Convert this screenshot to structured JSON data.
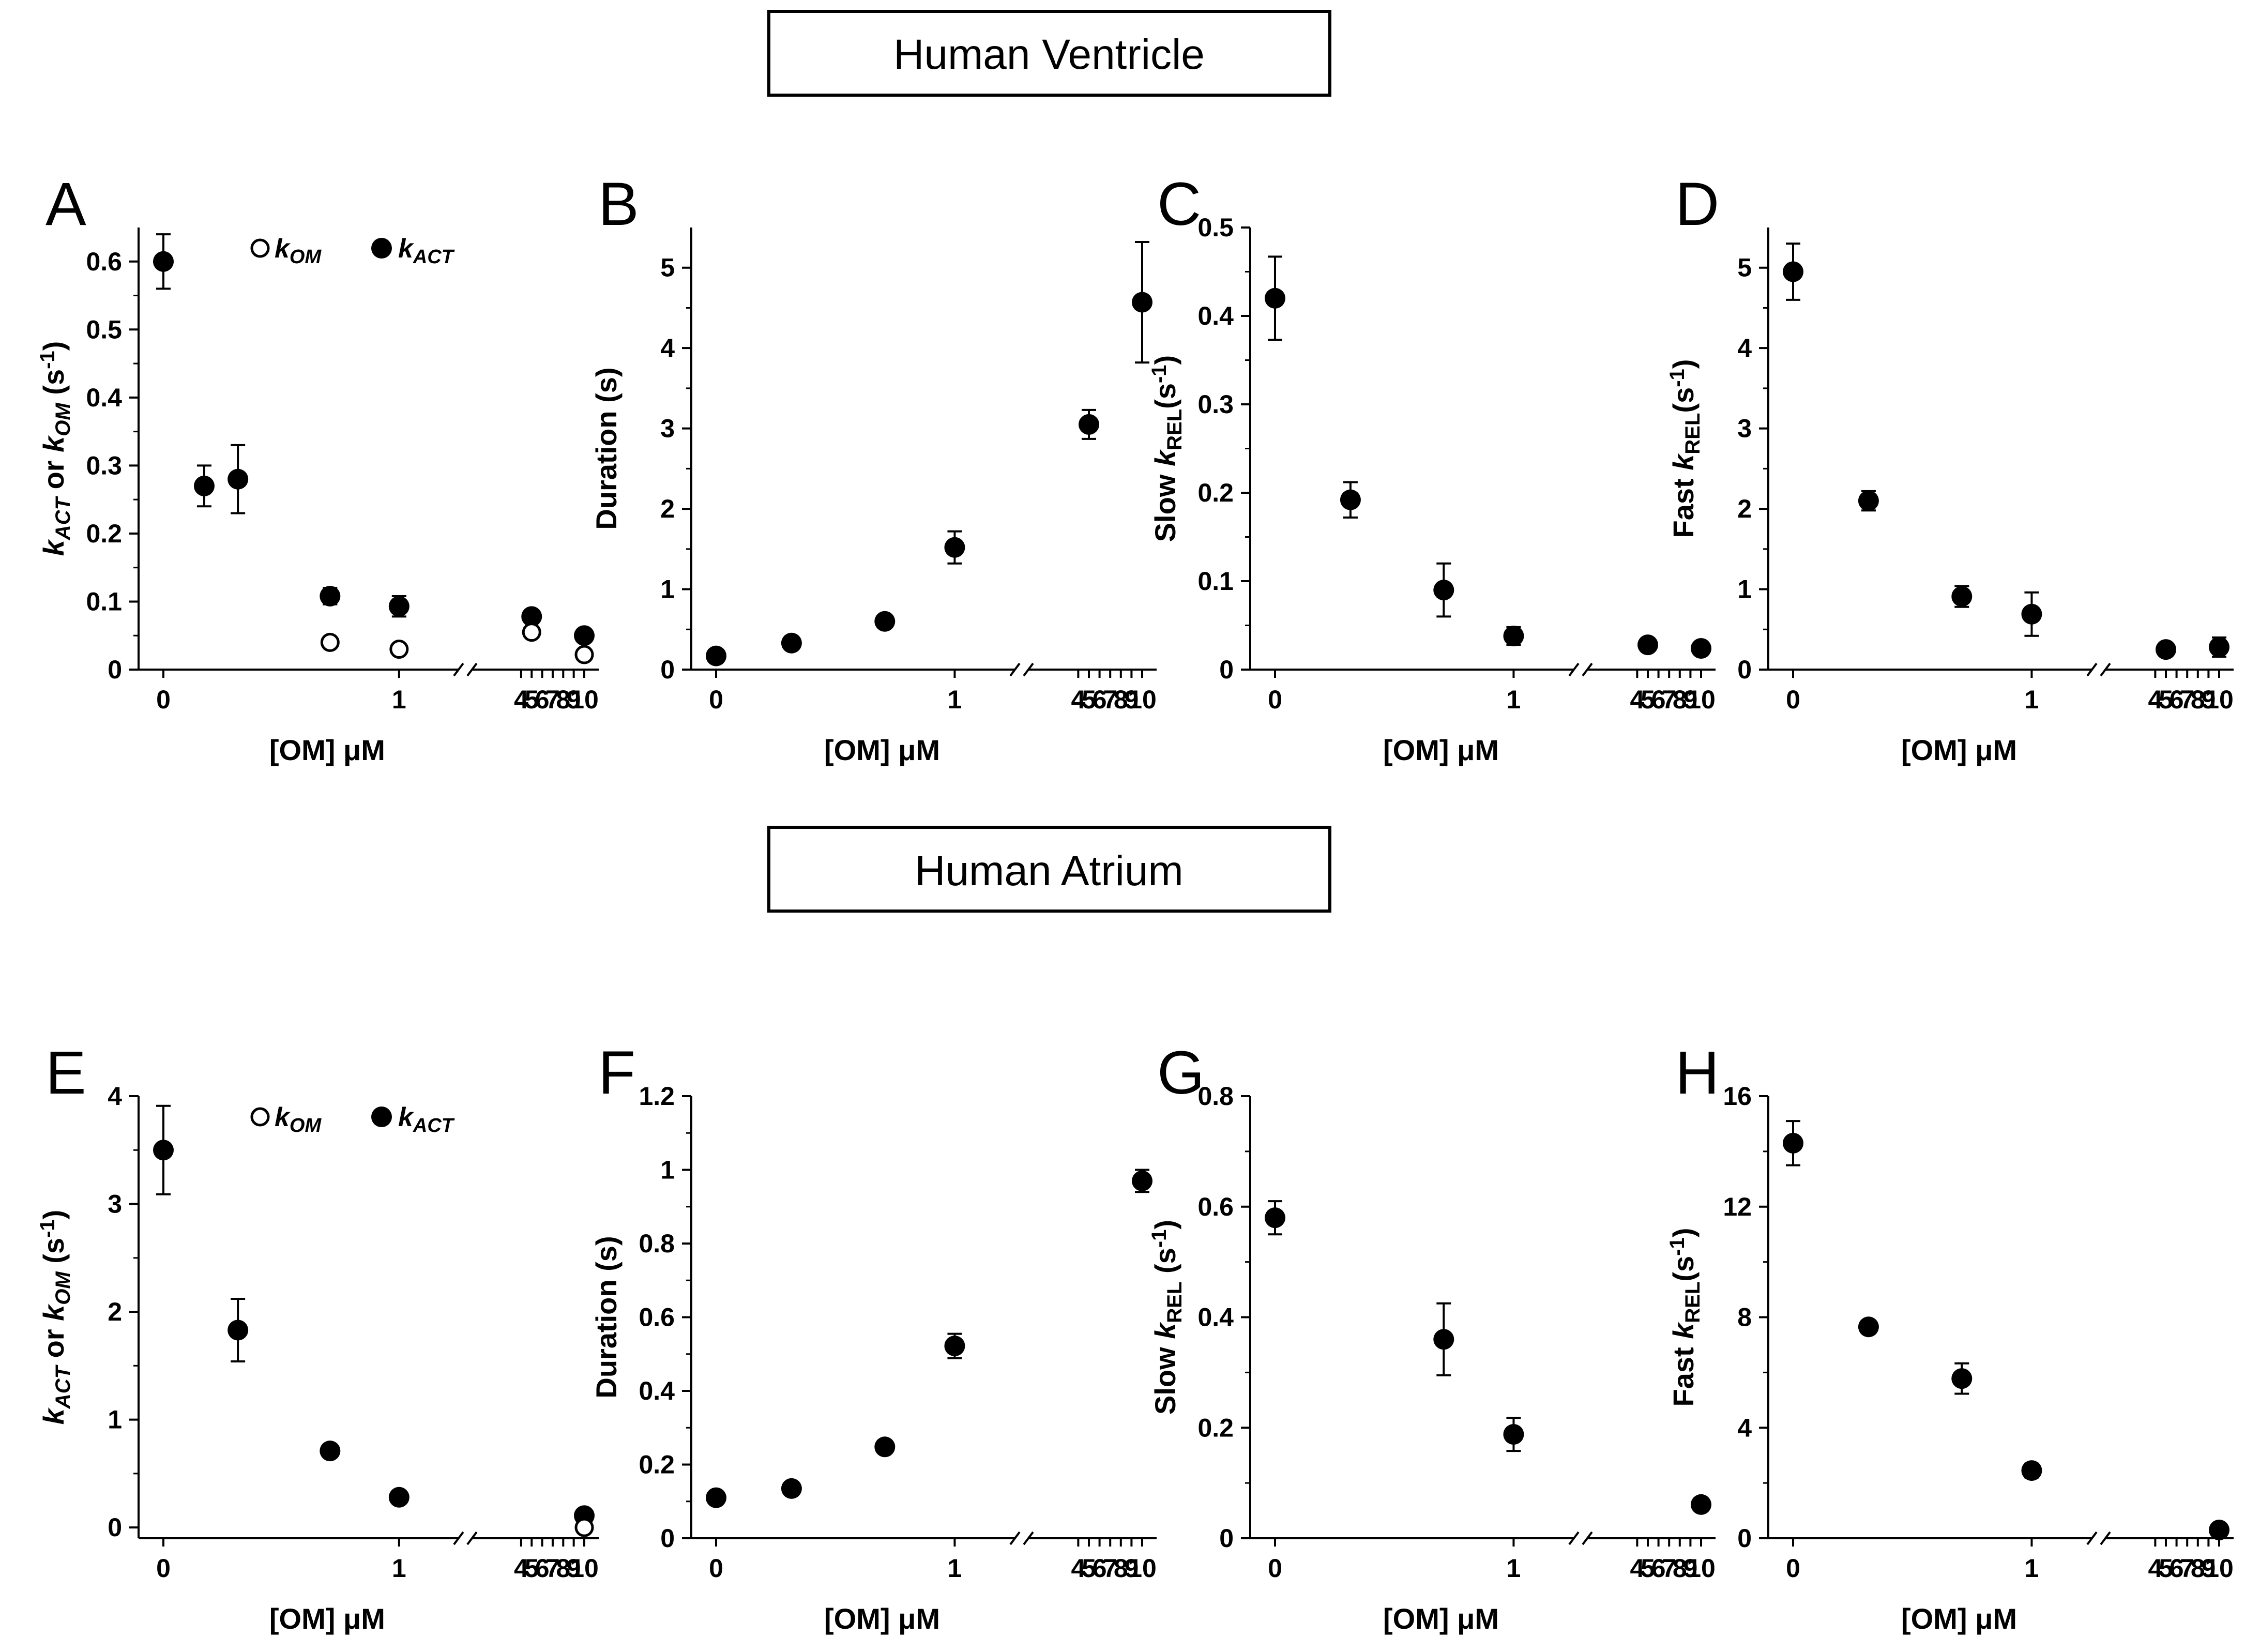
{
  "sections": [
    {
      "title": "Human Ventricle"
    },
    {
      "title": "Human Atrium"
    }
  ],
  "axis_common": {
    "xlabel": "[OM] μM",
    "x_ticks": [
      {
        "v": 0,
        "label": "0"
      },
      {
        "v": 1,
        "label": "1"
      },
      {
        "v": 4,
        "label": "4"
      },
      {
        "v": 5,
        "label": "5"
      },
      {
        "v": 6,
        "label": "6"
      },
      {
        "v": 7,
        "label": "7"
      },
      {
        "v": 8,
        "label": "8"
      },
      {
        "v": 9,
        "label": "9"
      },
      {
        "v": 10,
        "label": "10"
      }
    ]
  },
  "legend": {
    "open_label": "k",
    "open_sub": "OM",
    "filled_label": "k",
    "filled_sub": "ACT"
  },
  "chart_data": [
    {
      "panel": "A",
      "type": "scatter",
      "section": 0,
      "legend": true,
      "ylabel": [
        {
          "t": "k",
          "it": true
        },
        {
          "t": "ACT",
          "sub": true,
          "it": true
        },
        {
          "t": "  or "
        },
        {
          "t": "k",
          "it": true
        },
        {
          "t": "OM",
          "sub": true,
          "it": true
        },
        {
          "t": " (s"
        },
        {
          "t": "-1",
          "sup": true
        },
        {
          "t": ")"
        }
      ],
      "ylim": [
        0,
        0.65
      ],
      "yticks": [
        0,
        0.1,
        0.2,
        0.3,
        0.4,
        0.5,
        0.6
      ],
      "ytick_labels": [
        "0",
        "0.1",
        "0.2",
        "0.3",
        "0.4",
        "0.5",
        "0.6"
      ],
      "series": [
        {
          "name": "kACT",
          "marker": "filled",
          "x": [
            0,
            0.03,
            0.1,
            0.5,
            1,
            5,
            10
          ],
          "y": [
            0.6,
            0.27,
            0.28,
            0.108,
            0.093,
            0.078,
            0.05
          ],
          "err": [
            0.04,
            0.03,
            0.05,
            0.012,
            0.015,
            0.008,
            0.006
          ]
        },
        {
          "name": "kOM",
          "marker": "open",
          "x": [
            0.5,
            1,
            5,
            10
          ],
          "y": [
            0.04,
            0.03,
            0.055,
            0.022
          ],
          "err": [
            0,
            0,
            0,
            0
          ]
        }
      ]
    },
    {
      "panel": "B",
      "type": "scatter",
      "section": 0,
      "legend": false,
      "ylabel": [
        {
          "t": "Duration (s)"
        }
      ],
      "ylim": [
        0,
        5.5
      ],
      "yticks": [
        0,
        1,
        2,
        3,
        4,
        5
      ],
      "ytick_labels": [
        "0",
        "1",
        "2",
        "3",
        "4",
        "5"
      ],
      "series": [
        {
          "name": "Duration",
          "marker": "filled",
          "x": [
            0,
            0.1,
            0.5,
            1,
            5,
            10
          ],
          "y": [
            0.17,
            0.33,
            0.6,
            1.52,
            3.05,
            4.57
          ],
          "err": [
            0,
            0,
            0,
            0.2,
            0.18,
            0.75
          ]
        }
      ]
    },
    {
      "panel": "C",
      "type": "scatter",
      "section": 0,
      "legend": false,
      "ylabel": [
        {
          "t": "Slow "
        },
        {
          "t": "k",
          "it": true
        },
        {
          "t": "REL",
          "sub": true
        },
        {
          "t": "(s"
        },
        {
          "t": "-1",
          "sup": true
        },
        {
          "t": ")"
        }
      ],
      "ylim": [
        0,
        0.5
      ],
      "yticks": [
        0,
        0.1,
        0.2,
        0.3,
        0.4,
        0.5
      ],
      "ytick_labels": [
        "0",
        "0.1",
        "0.2",
        "0.3",
        "0.4",
        "0.5"
      ],
      "series": [
        {
          "name": "Slow kREL",
          "marker": "filled",
          "x": [
            0,
            0.1,
            0.5,
            1,
            5,
            10
          ],
          "y": [
            0.42,
            0.192,
            0.09,
            0.038,
            0.028,
            0.024
          ],
          "err": [
            0.047,
            0.02,
            0.03,
            0.01,
            0,
            0
          ]
        }
      ]
    },
    {
      "panel": "D",
      "type": "scatter",
      "section": 0,
      "legend": false,
      "ylabel": [
        {
          "t": "Fast "
        },
        {
          "t": "k",
          "it": true
        },
        {
          "t": "REL",
          "sub": true
        },
        {
          "t": "(s"
        },
        {
          "t": "-1",
          "sup": true
        },
        {
          "t": ")"
        }
      ],
      "ylim": [
        0,
        5.5
      ],
      "yticks": [
        0,
        1,
        2,
        3,
        4,
        5
      ],
      "ytick_labels": [
        "0",
        "1",
        "2",
        "3",
        "4",
        "5"
      ],
      "series": [
        {
          "name": "Fast kREL",
          "marker": "filled",
          "x": [
            0,
            0.1,
            0.5,
            1,
            5,
            10
          ],
          "y": [
            4.95,
            2.1,
            0.91,
            0.69,
            0.25,
            0.28
          ],
          "err": [
            0.35,
            0.12,
            0.13,
            0.27,
            0,
            0.12
          ]
        }
      ]
    },
    {
      "panel": "E",
      "type": "scatter",
      "section": 1,
      "legend": true,
      "ylabel": [
        {
          "t": "k",
          "it": true
        },
        {
          "t": "ACT",
          "sub": true,
          "it": true
        },
        {
          "t": "  or "
        },
        {
          "t": "k",
          "it": true
        },
        {
          "t": "OM",
          "sub": true,
          "it": true
        },
        {
          "t": " (s"
        },
        {
          "t": "-1",
          "sup": true
        },
        {
          "t": ")"
        }
      ],
      "ylim": [
        -0.1,
        4
      ],
      "yticks": [
        0,
        1,
        2,
        3,
        4
      ],
      "ytick_labels": [
        "0",
        "1",
        "2",
        "3",
        "4"
      ],
      "series": [
        {
          "name": "kACT",
          "marker": "filled",
          "x": [
            0,
            0.1,
            0.5,
            1,
            10
          ],
          "y": [
            3.5,
            1.83,
            0.71,
            0.28,
            0.11
          ],
          "err": [
            0.41,
            0.29,
            0.05,
            0,
            0
          ]
        },
        {
          "name": "kOM",
          "marker": "open",
          "x": [
            10
          ],
          "y": [
            0.0
          ],
          "err": [
            0
          ]
        }
      ]
    },
    {
      "panel": "F",
      "type": "scatter",
      "section": 1,
      "legend": false,
      "ylabel": [
        {
          "t": "Duration (s)"
        }
      ],
      "ylim": [
        0,
        1.2
      ],
      "yticks": [
        0,
        0.2,
        0.4,
        0.6,
        0.8,
        1.0,
        1.2
      ],
      "ytick_labels": [
        "0",
        "0.2",
        "0.4",
        "0.6",
        "0.8",
        "1",
        "1.2"
      ],
      "series": [
        {
          "name": "Duration",
          "marker": "filled",
          "x": [
            0,
            0.1,
            0.5,
            1,
            10
          ],
          "y": [
            0.11,
            0.135,
            0.248,
            0.522,
            0.97
          ],
          "err": [
            0,
            0,
            0,
            0.033,
            0.03
          ]
        }
      ]
    },
    {
      "panel": "G",
      "type": "scatter",
      "section": 1,
      "legend": false,
      "ylabel": [
        {
          "t": "Slow "
        },
        {
          "t": "k",
          "it": true
        },
        {
          "t": "REL",
          "sub": true
        },
        {
          "t": " (s"
        },
        {
          "t": "-1",
          "sup": true
        },
        {
          "t": ")"
        }
      ],
      "ylim": [
        0,
        0.8
      ],
      "yticks": [
        0,
        0.2,
        0.4,
        0.6,
        0.8
      ],
      "ytick_labels": [
        "0",
        "0.2",
        "0.4",
        "0.6",
        "0.8"
      ],
      "series": [
        {
          "name": "Slow kREL",
          "marker": "filled",
          "x": [
            0,
            0.5,
            1,
            10
          ],
          "y": [
            0.58,
            0.36,
            0.188,
            0.061
          ],
          "err": [
            0.03,
            0.065,
            0.03,
            0
          ]
        }
      ]
    },
    {
      "panel": "H",
      "type": "scatter",
      "section": 1,
      "legend": false,
      "ylabel": [
        {
          "t": "Fast "
        },
        {
          "t": "k",
          "it": true
        },
        {
          "t": "REL",
          "sub": true
        },
        {
          "t": "(s"
        },
        {
          "t": "-1",
          "sup": true
        },
        {
          "t": ")"
        }
      ],
      "ylim": [
        0,
        16
      ],
      "yticks": [
        0,
        4,
        8,
        12,
        16
      ],
      "ytick_labels": [
        "0",
        "4",
        "8",
        "12",
        "16"
      ],
      "series": [
        {
          "name": "Fast kREL",
          "marker": "filled",
          "x": [
            0,
            0.1,
            0.5,
            1,
            10
          ],
          "y": [
            14.3,
            7.65,
            5.78,
            2.45,
            0.3
          ],
          "err": [
            0.8,
            0,
            0.55,
            0.25,
            0
          ]
        }
      ]
    }
  ]
}
